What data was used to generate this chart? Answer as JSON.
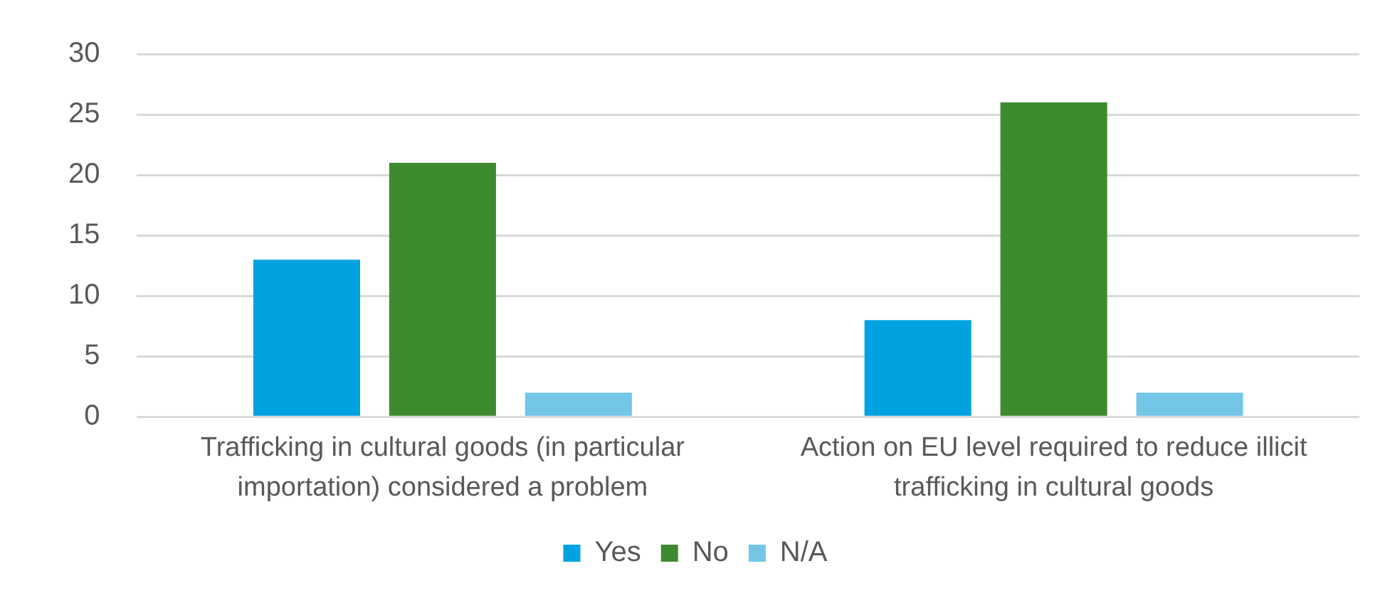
{
  "chart_data": {
    "type": "bar",
    "categories": [
      "Trafficking in cultural goods (in particular importation) considered a problem",
      "Action on EU level required to reduce illicit trafficking in cultural goods"
    ],
    "series": [
      {
        "name": "Yes",
        "color": "#00a2e0",
        "values": [
          13,
          8
        ]
      },
      {
        "name": "No",
        "color": "#3e8a2f",
        "values": [
          21,
          26
        ]
      },
      {
        "name": "N/A",
        "color": "#73c6e6",
        "values": [
          2,
          2
        ]
      }
    ],
    "ylim": [
      0,
      30
    ],
    "yticks": [
      0,
      5,
      10,
      15,
      20,
      25,
      30
    ],
    "grid": "y",
    "legend": "bottom"
  }
}
